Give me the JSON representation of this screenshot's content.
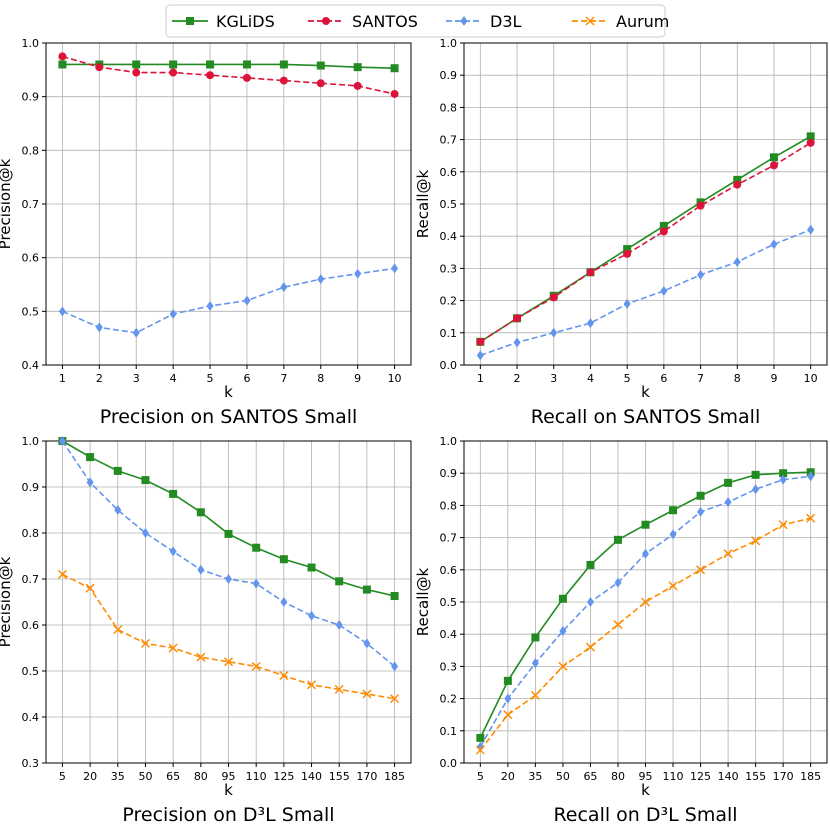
{
  "legend": {
    "entries": [
      {
        "name": "KGLiDS",
        "color": "#228B22",
        "marker": "square",
        "dash": "solid"
      },
      {
        "name": "SANTOS",
        "color": "#DC143C",
        "marker": "circle",
        "dash": "dashed"
      },
      {
        "name": "D3L",
        "color": "#6495ED",
        "marker": "diamond",
        "dash": "dashed"
      },
      {
        "name": "Aurum",
        "color": "#FF8C00",
        "marker": "x",
        "dash": "dashed"
      }
    ]
  },
  "chart_data": [
    {
      "type": "line",
      "title": "Precision on SANTOS Small",
      "xlabel": "k",
      "ylabel": "Precision@k",
      "categories": [
        "1",
        "2",
        "3",
        "4",
        "5",
        "6",
        "7",
        "8",
        "9",
        "10"
      ],
      "ylim": [
        0.4,
        1.0
      ],
      "yticks": [
        0.4,
        0.5,
        0.6,
        0.7,
        0.8,
        0.9,
        1.0
      ],
      "grid": true,
      "series": [
        {
          "name": "KGLiDS",
          "values": [
            0.96,
            0.96,
            0.96,
            0.96,
            0.96,
            0.96,
            0.96,
            0.958,
            0.955,
            0.953
          ]
        },
        {
          "name": "SANTOS",
          "values": [
            0.975,
            0.955,
            0.945,
            0.945,
            0.94,
            0.935,
            0.93,
            0.925,
            0.92,
            0.905
          ]
        },
        {
          "name": "D3L",
          "values": [
            0.5,
            0.47,
            0.46,
            0.495,
            0.51,
            0.52,
            0.545,
            0.56,
            0.57,
            0.58
          ]
        }
      ]
    },
    {
      "type": "line",
      "title": "Recall on SANTOS Small",
      "xlabel": "k",
      "ylabel": "Recall@k",
      "categories": [
        "1",
        "2",
        "3",
        "4",
        "5",
        "6",
        "7",
        "8",
        "9",
        "10"
      ],
      "ylim": [
        0.0,
        1.0
      ],
      "yticks": [
        0.0,
        0.1,
        0.2,
        0.3,
        0.4,
        0.5,
        0.6,
        0.7,
        0.8,
        0.9,
        1.0
      ],
      "grid": true,
      "series": [
        {
          "name": "KGLiDS",
          "values": [
            0.072,
            0.145,
            0.215,
            0.288,
            0.36,
            0.432,
            0.505,
            0.575,
            0.645,
            0.71
          ]
        },
        {
          "name": "SANTOS",
          "values": [
            0.072,
            0.145,
            0.21,
            0.288,
            0.345,
            0.415,
            0.495,
            0.56,
            0.62,
            0.69
          ]
        },
        {
          "name": "D3L",
          "values": [
            0.03,
            0.07,
            0.1,
            0.13,
            0.19,
            0.23,
            0.28,
            0.32,
            0.375,
            0.42
          ]
        }
      ]
    },
    {
      "type": "line",
      "title": "Precision on D³L Small",
      "xlabel": "k",
      "ylabel": "Precision@k",
      "categories": [
        "5",
        "20",
        "35",
        "50",
        "65",
        "80",
        "95",
        "110",
        "125",
        "140",
        "155",
        "170",
        "185"
      ],
      "ylim": [
        0.3,
        1.0
      ],
      "yticks": [
        0.3,
        0.4,
        0.5,
        0.6,
        0.7,
        0.8,
        0.9,
        1.0
      ],
      "grid": true,
      "series": [
        {
          "name": "KGLiDS",
          "values": [
            1.0,
            0.965,
            0.935,
            0.915,
            0.885,
            0.845,
            0.798,
            0.768,
            0.743,
            0.725,
            0.695,
            0.677,
            0.663
          ]
        },
        {
          "name": "D3L",
          "values": [
            1.0,
            0.91,
            0.85,
            0.8,
            0.76,
            0.72,
            0.7,
            0.69,
            0.65,
            0.62,
            0.6,
            0.56,
            0.51
          ]
        },
        {
          "name": "Aurum",
          "values": [
            0.71,
            0.68,
            0.59,
            0.56,
            0.55,
            0.53,
            0.52,
            0.51,
            0.49,
            0.47,
            0.46,
            0.45,
            0.44
          ]
        }
      ]
    },
    {
      "type": "line",
      "title": "Recall on D³L Small",
      "xlabel": "k",
      "ylabel": "Recall@k",
      "categories": [
        "5",
        "20",
        "35",
        "50",
        "65",
        "80",
        "95",
        "110",
        "125",
        "140",
        "155",
        "170",
        "185"
      ],
      "ylim": [
        0.0,
        1.0
      ],
      "yticks": [
        0.0,
        0.1,
        0.2,
        0.3,
        0.4,
        0.5,
        0.6,
        0.7,
        0.8,
        0.9,
        1.0
      ],
      "grid": true,
      "series": [
        {
          "name": "KGLiDS",
          "values": [
            0.078,
            0.255,
            0.39,
            0.51,
            0.615,
            0.693,
            0.74,
            0.785,
            0.83,
            0.87,
            0.895,
            0.9,
            0.903
          ]
        },
        {
          "name": "D3L",
          "values": [
            0.05,
            0.2,
            0.31,
            0.41,
            0.5,
            0.56,
            0.65,
            0.71,
            0.78,
            0.81,
            0.85,
            0.88,
            0.89
          ]
        },
        {
          "name": "Aurum",
          "values": [
            0.04,
            0.15,
            0.21,
            0.3,
            0.36,
            0.43,
            0.5,
            0.55,
            0.6,
            0.65,
            0.69,
            0.74,
            0.76
          ]
        }
      ]
    }
  ]
}
